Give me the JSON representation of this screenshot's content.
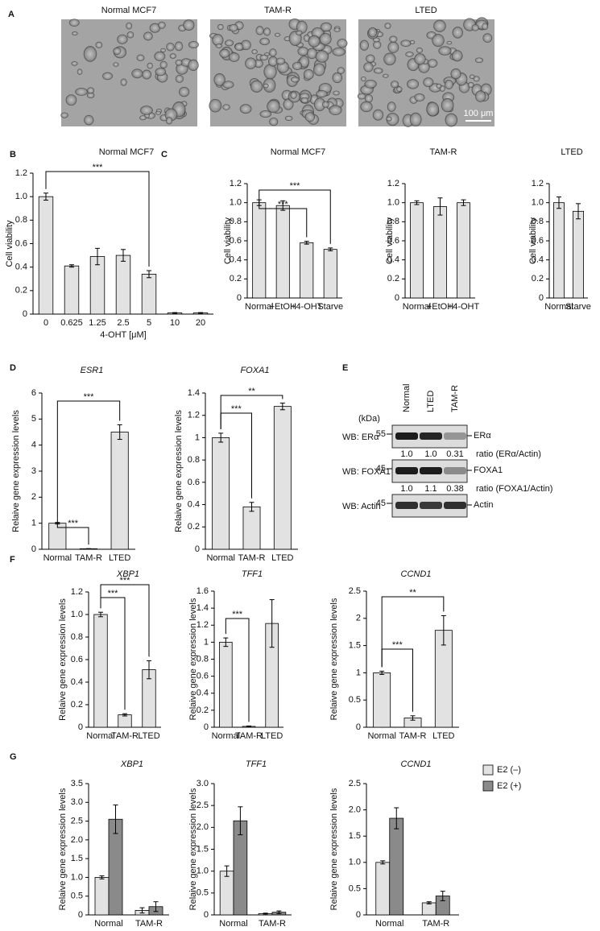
{
  "panel_labels": [
    "A",
    "B",
    "C",
    "D",
    "E",
    "F",
    "G"
  ],
  "images": {
    "titles": [
      "Normal MCF7",
      "TAM-R",
      "LTED"
    ],
    "scale_bar": "100 μm"
  },
  "chart_data": [
    {
      "type": "bar",
      "title": "Normal MCF7",
      "y_label": "Cell viability",
      "x_label": "4-OHT [μM]",
      "categories": [
        "0",
        "0.625",
        "1.25",
        "2.5",
        "5",
        "10",
        "20"
      ],
      "values": [
        1.0,
        0.41,
        0.49,
        0.5,
        0.34,
        0.01,
        0.01
      ],
      "errors": [
        0.03,
        0.01,
        0.07,
        0.05,
        0.03,
        0.003,
        0.003
      ],
      "color": "#e2e2e2",
      "ylim": [
        0,
        1.2
      ],
      "yticks": [
        0,
        0.2,
        0.4,
        0.6,
        0.8,
        {
          "value": 1,
          "label": "1.0"
        },
        1.2
      ],
      "annotations": [
        {
          "text": "***",
          "between": [
            "0",
            "5"
          ]
        }
      ]
    },
    {
      "type": "bar",
      "title": "Normal MCF7",
      "y_label": "Cell viability",
      "categories": [
        "Normal",
        "+EtOH",
        "+4-OHT",
        "Starve"
      ],
      "values": [
        1.0,
        0.97,
        0.58,
        0.51
      ],
      "errors": [
        0.03,
        0.05,
        0.015,
        0.015
      ],
      "color": "#e2e2e2",
      "ylim": [
        0,
        1.2
      ],
      "yticks": [
        0,
        0.2,
        0.4,
        0.6,
        0.8,
        {
          "value": 1,
          "label": "1.0"
        },
        1.2
      ],
      "annotations": [
        {
          "text": "***",
          "between": [
            "Normal",
            "+4-OHT"
          ]
        },
        {
          "text": "***",
          "between": [
            "Normal",
            "Starve"
          ]
        }
      ]
    },
    {
      "type": "bar",
      "title": "TAM-R",
      "y_label": "Cell viability",
      "categories": [
        "Normal",
        "+EtOH",
        "+4-OHT"
      ],
      "values": [
        1.0,
        0.96,
        1.0
      ],
      "errors": [
        0.02,
        0.09,
        0.03
      ],
      "color": "#e2e2e2",
      "ylim": [
        0,
        1.2
      ],
      "yticks": [
        0,
        0.2,
        0.4,
        0.6,
        0.8,
        {
          "value": 1,
          "label": "1.0"
        },
        1.2
      ]
    },
    {
      "type": "bar",
      "title": "LTED",
      "y_label": "Cell viability",
      "categories": [
        "Normal",
        "Starve"
      ],
      "values": [
        1.0,
        0.91
      ],
      "errors": [
        0.06,
        0.08
      ],
      "color": "#e2e2e2",
      "ylim": [
        0,
        1.2
      ],
      "yticks": [
        0,
        0.2,
        0.4,
        0.6,
        0.8,
        {
          "value": 1,
          "label": "1.0"
        },
        1.2
      ]
    },
    {
      "type": "bar",
      "title": "ESR1",
      "title_italic": true,
      "y_label": "Relaive gene expression levels",
      "categories": [
        "Normal",
        "TAM-R",
        "LTED"
      ],
      "values": [
        1.0,
        0.02,
        4.5
      ],
      "errors": [
        0.03,
        0.005,
        0.28
      ],
      "color": "#e2e2e2",
      "ylim": [
        0,
        6
      ],
      "yticks": [
        0,
        1,
        2,
        3,
        4,
        5,
        6
      ],
      "annotations": [
        {
          "text": "***",
          "between": [
            "Normal",
            "TAM-R"
          ]
        },
        {
          "text": "***",
          "between": [
            "Normal",
            "LTED"
          ]
        }
      ]
    },
    {
      "type": "bar",
      "title": "FOXA1",
      "title_italic": true,
      "y_label": "Relaive gene expression levels",
      "categories": [
        "Normal",
        "TAM-R",
        "LTED"
      ],
      "values": [
        1.0,
        0.38,
        1.28
      ],
      "errors": [
        0.04,
        0.04,
        0.03
      ],
      "color": "#e2e2e2",
      "ylim": [
        0,
        1.4
      ],
      "yticks": [
        0,
        0.2,
        0.4,
        0.6,
        0.8,
        1,
        1.2,
        1.4
      ],
      "annotations": [
        {
          "text": "***",
          "between": [
            "Normal",
            "TAM-R"
          ]
        },
        {
          "text": "**",
          "between": [
            "Normal",
            "LTED"
          ]
        }
      ]
    },
    {
      "type": "bar",
      "title": "XBP1",
      "title_italic": true,
      "y_label": "Relaive gene expression levels",
      "categories": [
        "Normal",
        "TAM-R",
        "LTED"
      ],
      "values": [
        1.0,
        0.11,
        0.51
      ],
      "errors": [
        0.02,
        0.01,
        0.08
      ],
      "color": "#e2e2e2",
      "ylim": [
        0,
        1.2
      ],
      "yticks": [
        0,
        0.2,
        0.4,
        0.6,
        0.8,
        {
          "value": 1,
          "label": "1.0"
        },
        1.2
      ],
      "annotations": [
        {
          "text": "***",
          "between": [
            "Normal",
            "TAM-R"
          ]
        },
        {
          "text": "***",
          "between": [
            "Normal",
            "LTED"
          ]
        }
      ]
    },
    {
      "type": "bar",
      "title": "TFF1",
      "title_italic": true,
      "y_label": "Relaive gene expression levels",
      "categories": [
        "Normal",
        "TAM-R",
        "LTED"
      ],
      "values": [
        1.0,
        0.01,
        1.22
      ],
      "errors": [
        0.05,
        0.005,
        0.28
      ],
      "color": "#e2e2e2",
      "ylim": [
        0,
        1.6
      ],
      "yticks": [
        0,
        0.2,
        0.4,
        0.6,
        0.8,
        1,
        1.2,
        1.4,
        1.6
      ],
      "annotations": [
        {
          "text": "***",
          "between": [
            "Normal",
            "TAM-R"
          ]
        }
      ]
    },
    {
      "type": "bar",
      "title": "CCND1",
      "title_italic": true,
      "y_label": "Relaive gene expression levels",
      "categories": [
        "Normal",
        "TAM-R",
        "LTED"
      ],
      "values": [
        1.0,
        0.17,
        1.78
      ],
      "errors": [
        0.03,
        0.04,
        0.27
      ],
      "color": "#e2e2e2",
      "ylim": [
        0,
        2.5
      ],
      "yticks": [
        0,
        0.5,
        1,
        1.5,
        2,
        2.5
      ],
      "annotations": [
        {
          "text": "***",
          "between": [
            "Normal",
            "TAM-R"
          ]
        },
        {
          "text": "**",
          "between": [
            "Normal",
            "LTED"
          ]
        }
      ]
    },
    {
      "type": "grouped_bar",
      "title": "XBP1",
      "title_italic": true,
      "y_label": "Relaive gene expression levels",
      "categories": [
        "Normal",
        "TAM-R"
      ],
      "series": [
        {
          "color": "#e2e2e2",
          "values": [
            1.0,
            0.12
          ],
          "errors": [
            0.04,
            0.07
          ]
        },
        {
          "color": "#8a8a8a",
          "values": [
            2.55,
            0.22
          ],
          "errors": [
            0.38,
            0.13
          ]
        }
      ],
      "ylim": [
        0,
        3.5
      ],
      "yticks": [
        0,
        0.5,
        {
          "value": 1,
          "label": "1.0"
        },
        1.5,
        {
          "value": 2,
          "label": "2.0"
        },
        2.5,
        {
          "value": 3,
          "label": "3.0"
        },
        3.5
      ]
    },
    {
      "type": "grouped_bar",
      "title": "TFF1",
      "title_italic": true,
      "y_label": "Relaive gene expression levels",
      "categories": [
        "Normal",
        "TAM-R"
      ],
      "series": [
        {
          "color": "#e2e2e2",
          "values": [
            1.0,
            0.03
          ],
          "errors": [
            0.12,
            0.01
          ]
        },
        {
          "color": "#8a8a8a",
          "values": [
            2.15,
            0.06
          ],
          "errors": [
            0.32,
            0.03
          ]
        }
      ],
      "ylim": [
        0,
        3
      ],
      "yticks": [
        0,
        0.5,
        {
          "value": 1,
          "label": "1.0"
        },
        1.5,
        {
          "value": 2,
          "label": "2.0"
        },
        2.5,
        {
          "value": 3,
          "label": "3.0"
        }
      ]
    },
    {
      "type": "grouped_bar",
      "title": "CCND1",
      "title_italic": true,
      "y_label": "Relaive gene expression levels",
      "categories": [
        "Normal",
        "TAM-R"
      ],
      "series": [
        {
          "name": "E2 (–)",
          "color": "#e2e2e2",
          "values": [
            1.0,
            0.23
          ],
          "errors": [
            0.03,
            0.02
          ]
        },
        {
          "name": "E2 (+)",
          "color": "#8a8a8a",
          "values": [
            1.84,
            0.36
          ],
          "errors": [
            0.2,
            0.09
          ]
        }
      ],
      "ylim": [
        0,
        2.5
      ],
      "yticks": [
        0,
        0.5,
        {
          "value": 1,
          "label": "1.0"
        },
        1.5,
        {
          "value": 2,
          "label": "2.0"
        },
        2.5
      ],
      "legend": "right"
    }
  ],
  "western_blot": {
    "kda_label": "(kDa)",
    "lanes": [
      "Normal",
      "LTED",
      "TAM-R"
    ],
    "rows": [
      {
        "label": "WB: ERα",
        "marker": "55",
        "band": "ERα",
        "ratios": [
          "1.0",
          "1.0",
          "0.31"
        ],
        "ratio_label": "ratio (ERα/Actin)"
      },
      {
        "label": "WB: FOXA1",
        "marker": "45",
        "band": "FOXA1",
        "ratios": [
          "1.0",
          "1.1",
          "0.38"
        ],
        "ratio_label": "ratio (FOXA1/Actin)"
      },
      {
        "label": "WB: Actin",
        "marker": "45",
        "band": "Actin"
      }
    ]
  }
}
